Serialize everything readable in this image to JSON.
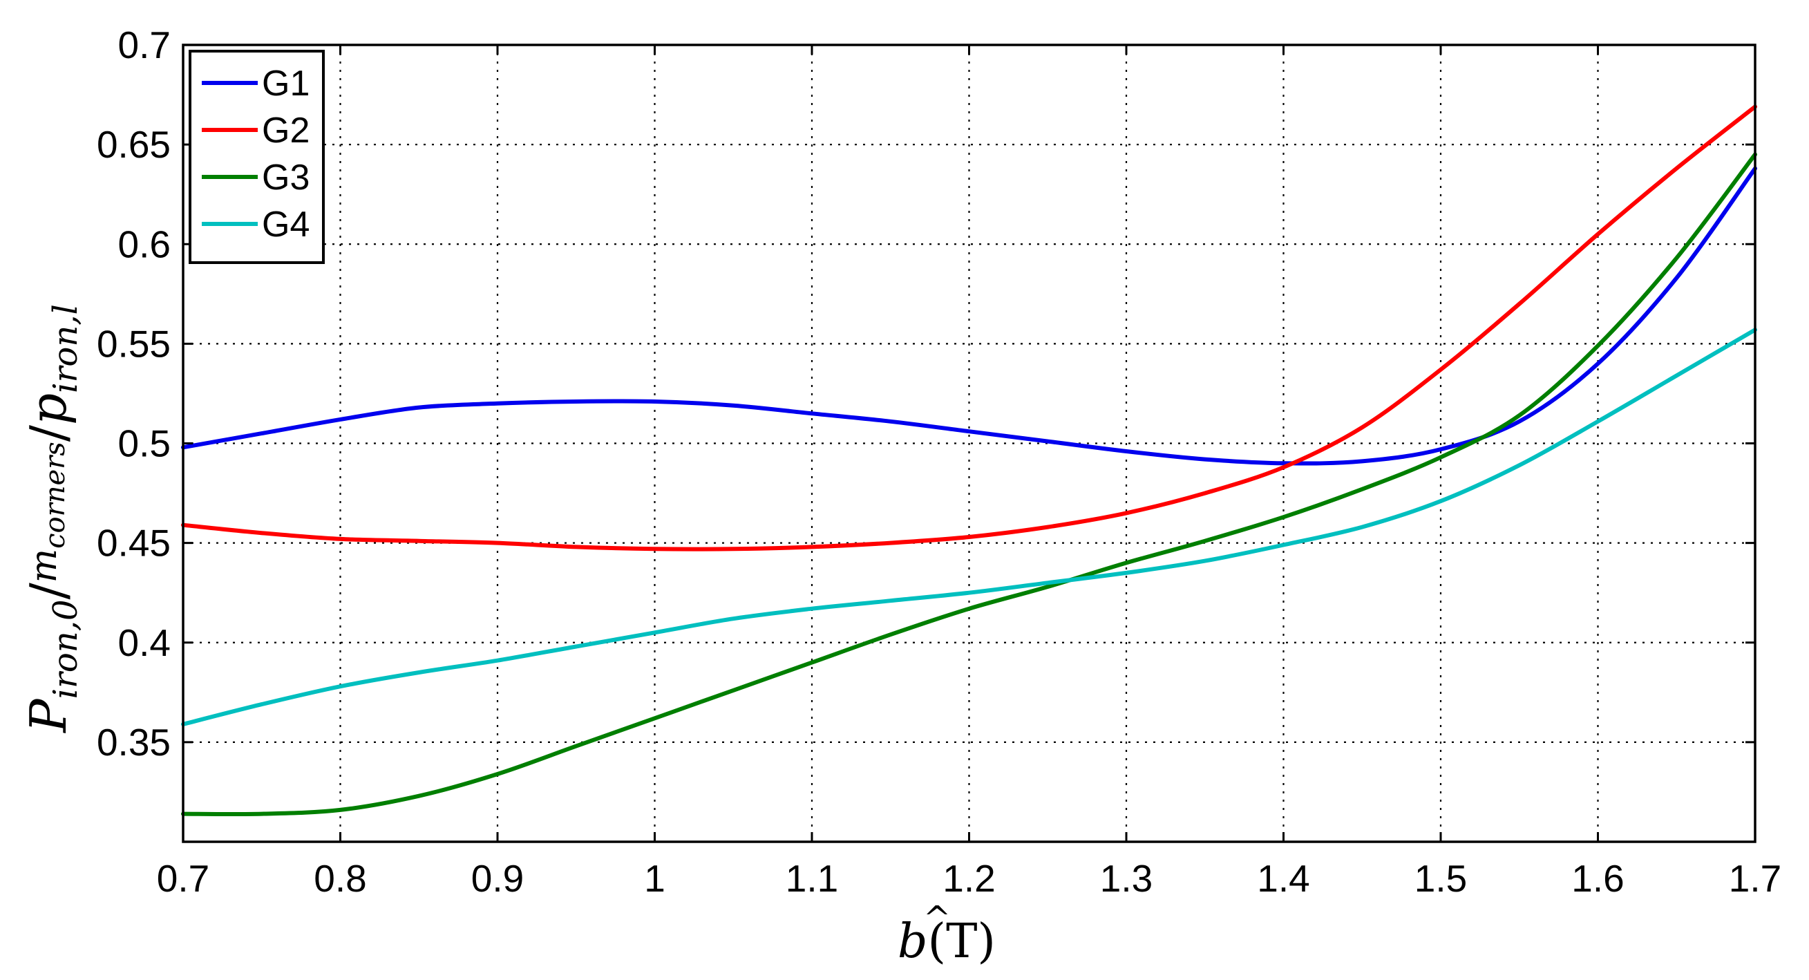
{
  "chart_data": {
    "type": "line",
    "xlim": [
      0.7,
      1.7
    ],
    "ylim": [
      0.3,
      0.7
    ],
    "grid": true,
    "legend_position": "top-left",
    "x_ticks": [
      "0.7",
      "0.8",
      "0.9",
      "1",
      "1.1",
      "1.2",
      "1.3",
      "1.4",
      "1.5",
      "1.6",
      "1.7"
    ],
    "y_ticks": [
      "0.35",
      "0.4",
      "0.45",
      "0.5",
      "0.55",
      "0.6",
      "0.65",
      "0.7"
    ],
    "xlabel": {
      "hat": "^",
      "symbol": "b",
      "unit": "(T)"
    },
    "ylabel": {
      "num": "P",
      "num_sub": "iron,0",
      "slash1": "/",
      "den1": "m",
      "den1_sub": "corners",
      "slash2": "/",
      "den2": "p",
      "den2_sub": "iron,l"
    },
    "x": [
      0.7,
      0.75,
      0.8,
      0.85,
      0.9,
      0.95,
      1.0,
      1.05,
      1.1,
      1.15,
      1.2,
      1.25,
      1.3,
      1.35,
      1.4,
      1.45,
      1.5,
      1.55,
      1.6,
      1.65,
      1.7
    ],
    "series": [
      {
        "name": "G1",
        "color": "#0000ee",
        "values": [
          0.498,
          0.505,
          0.512,
          0.518,
          0.52,
          0.521,
          0.521,
          0.519,
          0.515,
          0.511,
          0.506,
          0.501,
          0.496,
          0.492,
          0.49,
          0.491,
          0.497,
          0.511,
          0.54,
          0.583,
          0.638
        ]
      },
      {
        "name": "G2",
        "color": "#ff0000",
        "values": [
          0.459,
          0.455,
          0.452,
          0.451,
          0.45,
          0.448,
          0.447,
          0.447,
          0.448,
          0.45,
          0.453,
          0.458,
          0.465,
          0.475,
          0.488,
          0.508,
          0.537,
          0.57,
          0.605,
          0.638,
          0.669
        ]
      },
      {
        "name": "G3",
        "color": "#007f00",
        "values": [
          0.314,
          0.314,
          0.316,
          0.323,
          0.334,
          0.348,
          0.362,
          0.376,
          0.39,
          0.404,
          0.417,
          0.428,
          0.44,
          0.451,
          0.463,
          0.477,
          0.493,
          0.514,
          0.549,
          0.593,
          0.645
        ]
      },
      {
        "name": "G4",
        "color": "#00bfbf",
        "values": [
          0.359,
          0.369,
          0.378,
          0.385,
          0.391,
          0.398,
          0.405,
          0.412,
          0.417,
          0.421,
          0.425,
          0.43,
          0.435,
          0.441,
          0.449,
          0.458,
          0.471,
          0.489,
          0.511,
          0.534,
          0.557
        ]
      }
    ]
  }
}
